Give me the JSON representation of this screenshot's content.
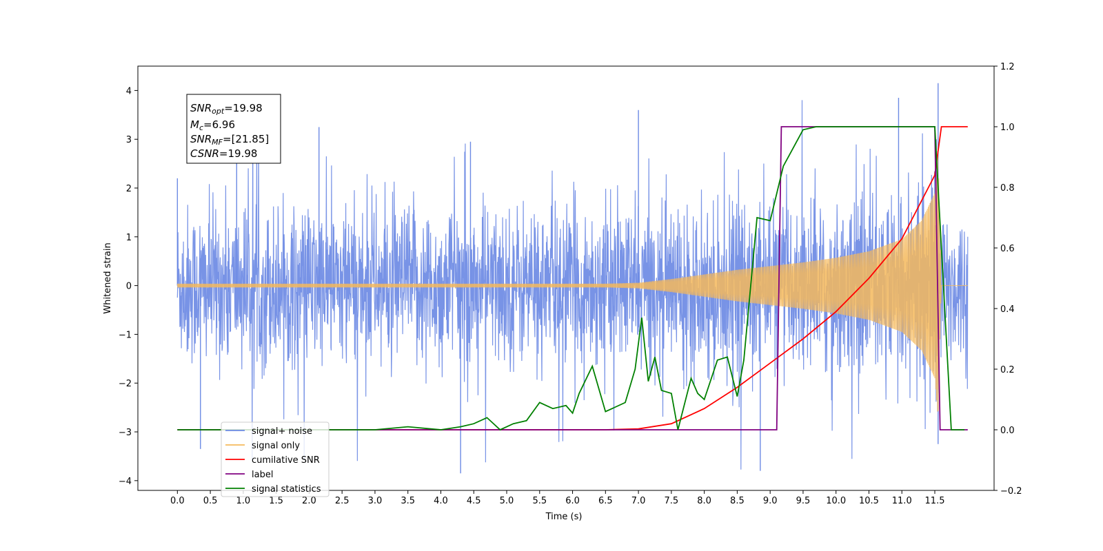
{
  "chart_data": {
    "type": "line",
    "title": "",
    "xlabel": "Time (s)",
    "ylabel": "Whitened strain",
    "xlim": [
      -0.6,
      12.4
    ],
    "ylim": [
      -4.2,
      4.5
    ],
    "y2lim": [
      -0.2,
      1.2
    ],
    "xticks": [
      "0.0",
      "0.5",
      "1.0",
      "1.5",
      "2.0",
      "2.5",
      "3.0",
      "3.5",
      "4.0",
      "4.5",
      "5.0",
      "5.5",
      "6.0",
      "6.5",
      "7.0",
      "7.5",
      "8.0",
      "8.5",
      "9.0",
      "9.5",
      "10.0",
      "10.5",
      "11.0",
      "11.5"
    ],
    "yticks": [
      "4",
      "3",
      "2",
      "1",
      "0",
      "−1",
      "−2",
      "−3",
      "−4"
    ],
    "y2ticks": [
      "1.2",
      "1.0",
      "0.8",
      "0.6",
      "0.4",
      "0.2",
      "0.0",
      "−0.2"
    ],
    "grid": false,
    "legend_position": "lower-left",
    "annotation": {
      "snr_opt": "=19.98",
      "mc": "=6.96",
      "snr_mf": "=[21.85]",
      "csnr": "=19.98"
    },
    "series": [
      {
        "name": "signal+ noise",
        "color": "#6c8ae4",
        "axis": "left",
        "kind": "noisy_strain",
        "x_range": [
          0.0,
          12.0
        ],
        "spread_sd": 0.8,
        "peak_values": [
          {
            "x": 0.0,
            "y": 2.2
          },
          {
            "x": 0.35,
            "y": -3.35
          },
          {
            "x": 0.9,
            "y": 2.9
          },
          {
            "x": 2.15,
            "y": 3.25
          },
          {
            "x": 4.3,
            "y": -3.85
          },
          {
            "x": 4.45,
            "y": 2.95
          },
          {
            "x": 7.0,
            "y": 3.6
          },
          {
            "x": 8.85,
            "y": -3.8
          },
          {
            "x": 10.95,
            "y": 3.85
          },
          {
            "x": 11.55,
            "y": 4.15
          },
          {
            "x": 11.55,
            "y": -3.25
          }
        ]
      },
      {
        "name": "signal only",
        "color": "#f5b95c",
        "axis": "left",
        "kind": "chirp_envelope",
        "x": [
          0.0,
          6.5,
          7.0,
          7.5,
          8.0,
          8.5,
          9.0,
          9.5,
          10.0,
          10.5,
          11.0,
          11.3,
          11.5,
          11.55,
          11.6,
          12.0
        ],
        "envelope": [
          0.02,
          0.02,
          0.03,
          0.07,
          0.12,
          0.17,
          0.21,
          0.25,
          0.3,
          0.37,
          0.5,
          0.7,
          1.0,
          1.45,
          0.0,
          0.0
        ]
      },
      {
        "name": "cumilative SNR",
        "color": "#ff0000",
        "axis": "right",
        "x": [
          0.0,
          6.5,
          7.0,
          7.5,
          8.0,
          8.5,
          9.0,
          9.5,
          10.0,
          10.5,
          11.0,
          11.5,
          11.6,
          12.0
        ],
        "values": [
          0.0,
          0.0,
          0.003,
          0.02,
          0.07,
          0.14,
          0.22,
          0.3,
          0.39,
          0.5,
          0.63,
          0.84,
          1.0,
          1.0
        ]
      },
      {
        "name": "label",
        "color": "#800080",
        "axis": "right",
        "x": [
          0.0,
          9.1,
          9.17,
          11.5,
          11.58,
          12.0
        ],
        "values": [
          0.0,
          0.0,
          1.0,
          1.0,
          0.0,
          0.0
        ]
      },
      {
        "name": "signal statistics",
        "color": "#008000",
        "axis": "right",
        "x": [
          0.0,
          3.0,
          3.5,
          4.0,
          4.3,
          4.5,
          4.7,
          4.9,
          5.1,
          5.3,
          5.5,
          5.7,
          5.9,
          6.0,
          6.1,
          6.3,
          6.5,
          6.8,
          6.95,
          7.05,
          7.15,
          7.25,
          7.35,
          7.5,
          7.6,
          7.8,
          7.9,
          8.0,
          8.2,
          8.35,
          8.5,
          8.6,
          8.8,
          9.0,
          9.2,
          9.5,
          9.7,
          10.0,
          11.5,
          11.6,
          11.75,
          11.95
        ],
        "values": [
          0.0,
          0.0,
          0.01,
          0.0,
          0.01,
          0.02,
          0.04,
          0.0,
          0.02,
          0.03,
          0.09,
          0.07,
          0.08,
          0.055,
          0.12,
          0.21,
          0.06,
          0.09,
          0.2,
          0.37,
          0.16,
          0.24,
          0.13,
          0.12,
          0.0,
          0.17,
          0.12,
          0.1,
          0.23,
          0.24,
          0.11,
          0.23,
          0.7,
          0.69,
          0.87,
          0.99,
          1.0,
          1.0,
          1.0,
          0.6,
          0.0,
          0.0
        ]
      }
    ]
  }
}
